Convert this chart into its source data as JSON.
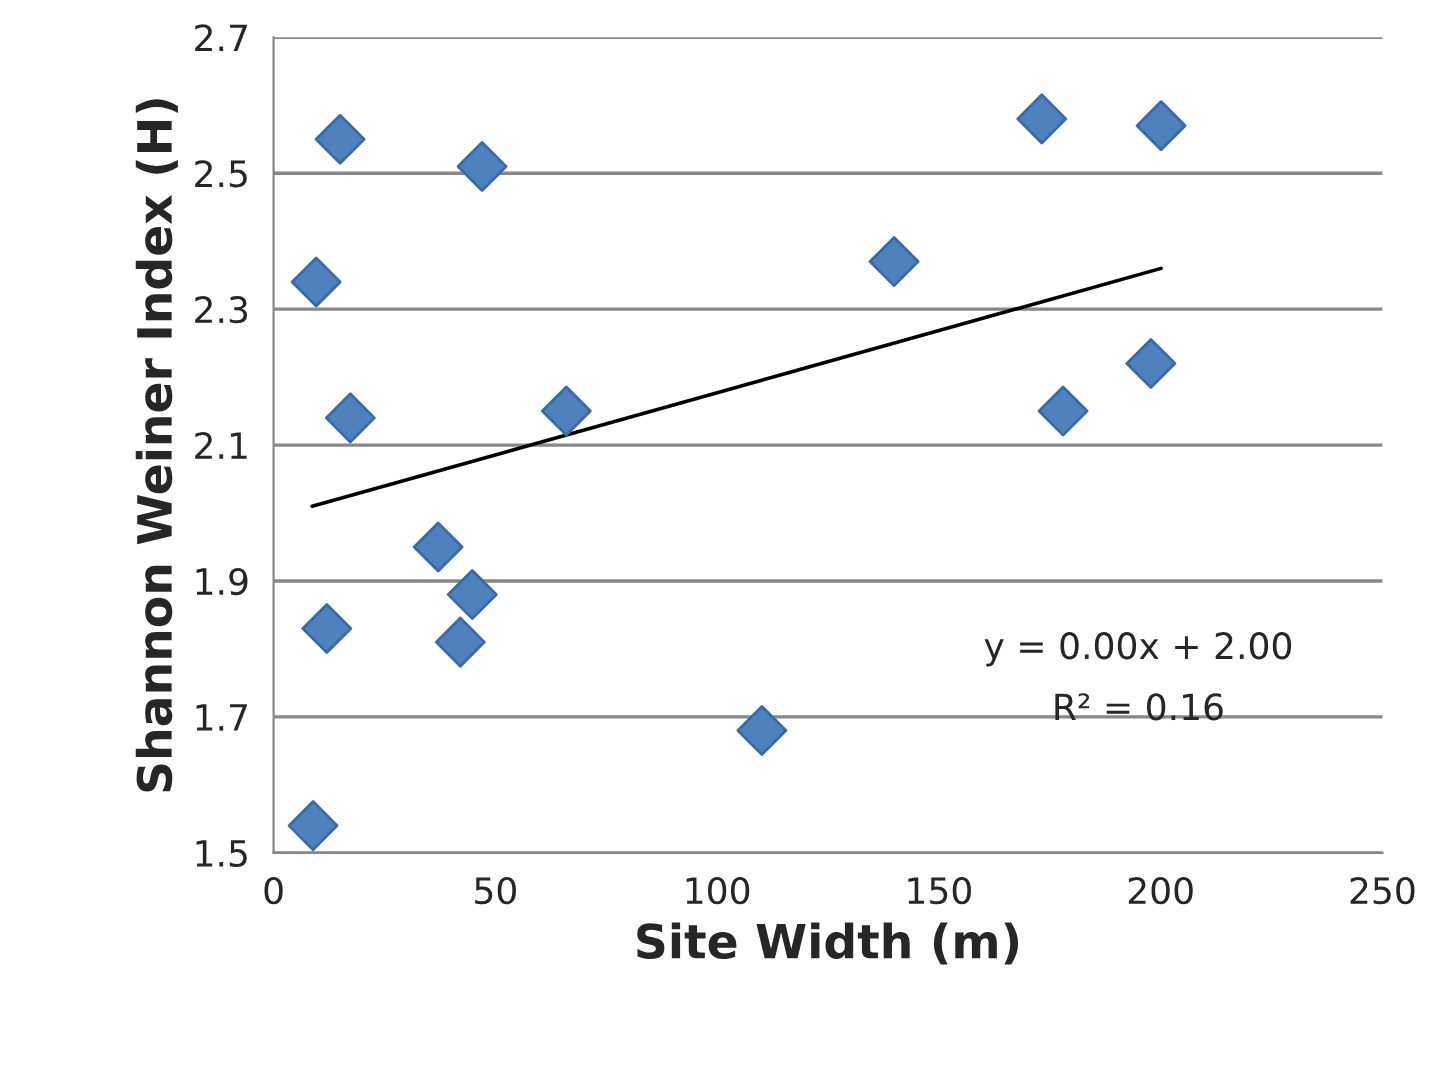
{
  "chart_data": {
    "type": "scatter",
    "xlabel": "Site Width (m)",
    "ylabel": "Shannon Weiner Index (H)",
    "xlim": [
      0,
      250
    ],
    "xticks": [
      0,
      50,
      100,
      150,
      200,
      250
    ],
    "ylim": [
      1.5,
      2.7
    ],
    "yticks": [
      1.5,
      1.7,
      1.9,
      2.1,
      2.3,
      2.5,
      2.7
    ],
    "grid": "y",
    "marker": "diamond",
    "series": [
      {
        "color": "#4f81bd",
        "x": [
          15.0,
          47.0,
          173.2,
          200.1,
          9.6,
          139.9,
          17.3,
          66.0,
          178.0,
          197.8,
          37.1,
          44.8,
          12.0,
          42.1,
          110.1,
          8.9
        ],
        "values": [
          2.55,
          2.51,
          2.58,
          2.57,
          2.34,
          2.37,
          2.14,
          2.15,
          2.15,
          2.22,
          1.95,
          1.88,
          1.83,
          1.81,
          1.68,
          1.54
        ]
      },
      {
        "type": "line",
        "color": "#000000",
        "line_style": "solid",
        "marker": "none",
        "x": [
          8.7,
          200.1
        ],
        "values": [
          2.01,
          2.36
        ]
      }
    ],
    "annotations": [
      "y = 0.00x + 2.00",
      "R² = 0.16"
    ]
  }
}
